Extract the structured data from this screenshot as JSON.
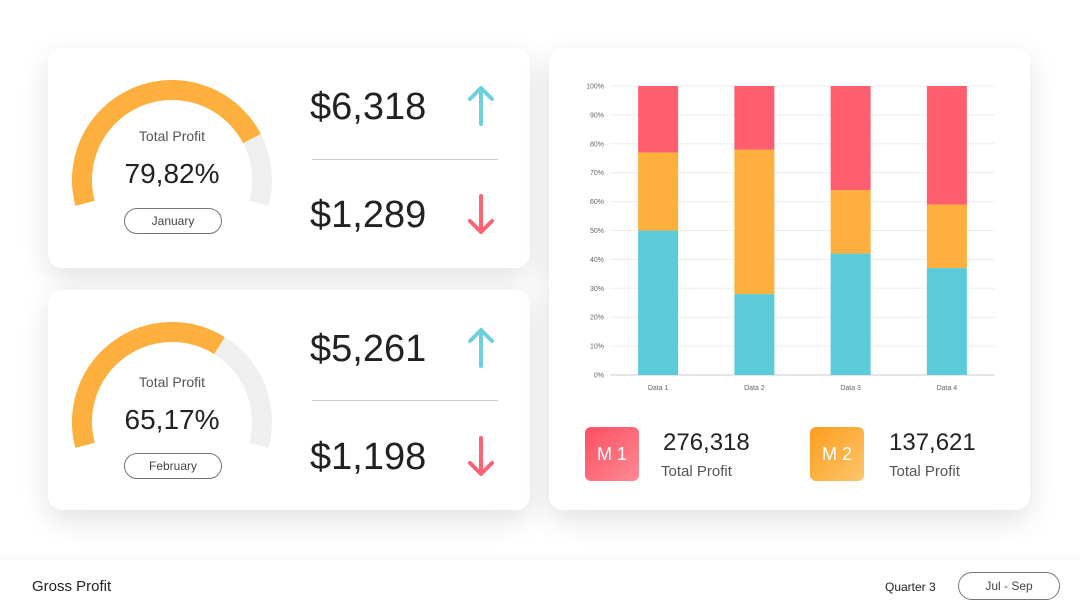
{
  "cards": [
    {
      "gauge_title": "Total Profit",
      "gauge": {
        "value": 79.82,
        "label": "79,82%"
      },
      "month": "January",
      "up": "$6,318",
      "down": "$1,289"
    },
    {
      "gauge_title": "Total Profit",
      "gauge": {
        "value": 65.17,
        "label": "65,17%"
      },
      "month": "February",
      "up": "$5,261",
      "down": "$1,198"
    }
  ],
  "chart_data": {
    "type": "bar",
    "stacked": true,
    "categories": [
      "Data 1",
      "Data 2",
      "Data 3",
      "Data 4"
    ],
    "series": [
      {
        "color": "#5ccbd9",
        "values": [
          50,
          28,
          42,
          37
        ]
      },
      {
        "color": "#fdb03d",
        "values": [
          27,
          50,
          22,
          22
        ]
      },
      {
        "color": "#fd5e70",
        "values": [
          23,
          22,
          36,
          41
        ]
      }
    ],
    "ylim": [
      0,
      100
    ],
    "yticks": [
      {
        "value": 0,
        "label": "0%"
      },
      {
        "value": 10,
        "label": "10%"
      },
      {
        "value": 20,
        "label": "20%"
      },
      {
        "value": 30,
        "label": "30%"
      },
      {
        "value": 40,
        "label": "40%"
      },
      {
        "value": 50,
        "label": "50%"
      },
      {
        "value": 60,
        "label": "60%"
      },
      {
        "value": 70,
        "label": "70%"
      },
      {
        "value": 80,
        "label": "80%"
      },
      {
        "value": 90,
        "label": "90%"
      },
      {
        "value": 100,
        "label": "100%"
      }
    ],
    "grid": true
  },
  "summary": [
    {
      "badge": "M 1",
      "value": "276,318",
      "label": "Total Profit"
    },
    {
      "badge": "M 2",
      "value": "137,621",
      "label": "Total Profit"
    }
  ],
  "footer": {
    "title": "Gross Profit",
    "quarter": "Quarter 3",
    "period": "Jul - Sep"
  }
}
